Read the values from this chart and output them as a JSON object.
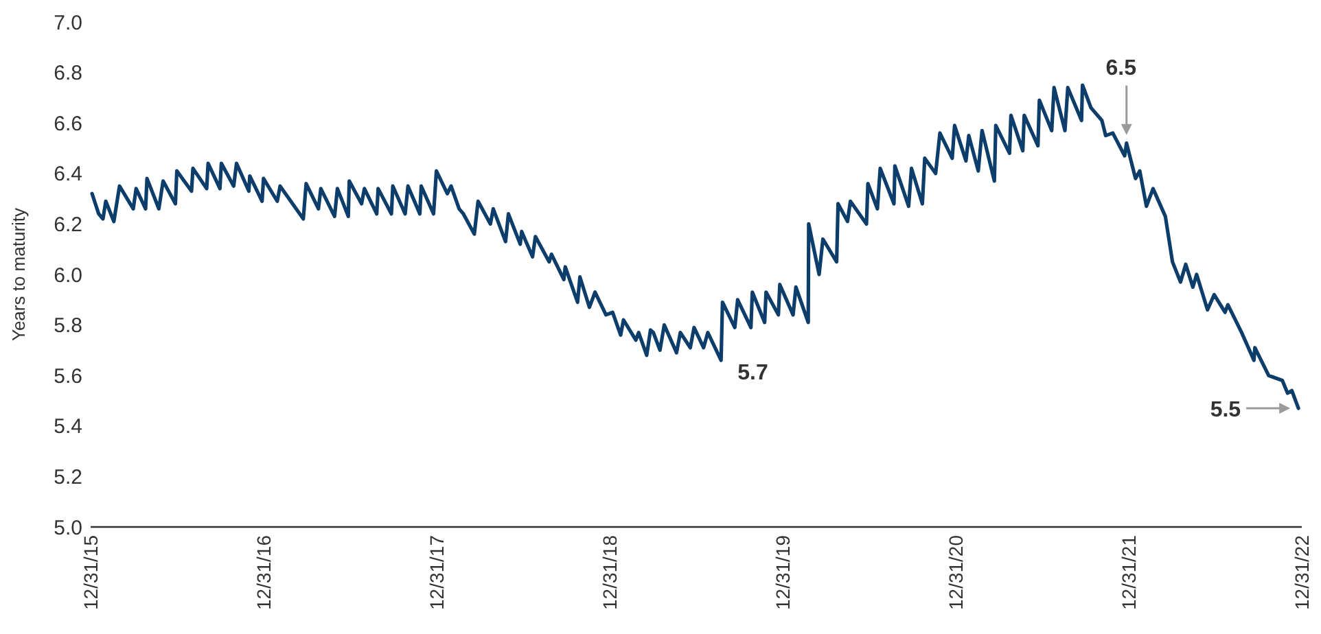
{
  "chart_data": {
    "type": "line",
    "ylabel": "Years to maturity",
    "xlim": [
      "2015-12-31",
      "2022-12-31"
    ],
    "xticks": [
      {
        "value": "2015-12-31",
        "label": "12/31/15"
      },
      {
        "value": "2016-12-31",
        "label": "12/31/16"
      },
      {
        "value": "2017-12-31",
        "label": "12/31/17"
      },
      {
        "value": "2018-12-31",
        "label": "12/31/18"
      },
      {
        "value": "2019-12-31",
        "label": "12/31/19"
      },
      {
        "value": "2020-12-31",
        "label": "12/31/20"
      },
      {
        "value": "2021-12-31",
        "label": "12/31/21"
      },
      {
        "value": "2022-12-31",
        "label": "12/31/22"
      }
    ],
    "ylim": [
      5,
      7
    ],
    "yticks": [
      {
        "value": 5,
        "label": "5.0"
      },
      {
        "value": 5.2,
        "label": "5.2"
      },
      {
        "value": 5.4,
        "label": "5.4"
      },
      {
        "value": 5.6,
        "label": "5.6"
      },
      {
        "value": 5.8,
        "label": "5.8"
      },
      {
        "value": 6,
        "label": "6.0"
      },
      {
        "value": 6.2,
        "label": "6.2"
      },
      {
        "value": 6.4,
        "label": "6.4"
      },
      {
        "value": 6.6,
        "label": "6.6"
      },
      {
        "value": 6.8,
        "label": "6.8"
      },
      {
        "value": 7,
        "label": "7.0"
      }
    ],
    "grid": false,
    "marker": "none",
    "line_style": "solid",
    "x": [
      "2016-01-03",
      "2016-01-17",
      "2016-01-26",
      "2016-02-01",
      "2016-02-18",
      "2016-03-01",
      "2016-03-30",
      "2016-04-05",
      "2016-04-25",
      "2016-04-28",
      "2016-05-23",
      "2016-06-01",
      "2016-06-27",
      "2016-06-30",
      "2016-07-31",
      "2016-08-03",
      "2016-09-01",
      "2016-09-04",
      "2016-09-29",
      "2016-10-02",
      "2016-10-28",
      "2016-11-03",
      "2016-11-29",
      "2016-12-01",
      "2016-12-27",
      "2016-12-30",
      "2017-01-28",
      "2017-02-03",
      "2017-03-24",
      "2017-03-30",
      "2017-04-25",
      "2017-04-30",
      "2017-05-29",
      "2017-06-04",
      "2017-06-27",
      "2017-06-29",
      "2017-07-25",
      "2017-07-31",
      "2017-08-26",
      "2017-08-29",
      "2017-09-26",
      "2017-09-29",
      "2017-10-25",
      "2017-10-31",
      "2017-11-25",
      "2017-11-28",
      "2017-12-24",
      "2017-12-30",
      "2018-01-22",
      "2018-01-30",
      "2018-02-16",
      "2018-02-25",
      "2018-03-20",
      "2018-03-28",
      "2018-04-23",
      "2018-04-29",
      "2018-05-25",
      "2018-05-31",
      "2018-06-25",
      "2018-06-28",
      "2018-07-21",
      "2018-07-27",
      "2018-08-25",
      "2018-08-30",
      "2018-09-25",
      "2018-09-28",
      "2018-10-24",
      "2018-10-29",
      "2018-11-18",
      "2018-11-30",
      "2018-12-23",
      "2019-01-06",
      "2019-01-23",
      "2019-01-29",
      "2019-02-24",
      "2019-03-02",
      "2019-03-19",
      "2019-03-27",
      "2019-04-02",
      "2019-04-16",
      "2019-04-25",
      "2019-05-21",
      "2019-05-29",
      "2019-06-19",
      "2019-06-27",
      "2019-07-17",
      "2019-07-26",
      "2019-08-23",
      "2019-08-26",
      "2019-09-21",
      "2019-09-27",
      "2019-10-25",
      "2019-10-28",
      "2019-11-23",
      "2019-11-26",
      "2019-12-22",
      "2019-12-25",
      "2020-01-22",
      "2020-01-28",
      "2020-02-23",
      "2020-02-24",
      "2020-03-17",
      "2020-03-25",
      "2020-04-23",
      "2020-04-26",
      "2020-05-16",
      "2020-05-22",
      "2020-06-25",
      "2020-06-28",
      "2020-07-18",
      "2020-07-24",
      "2020-08-22",
      "2020-08-24",
      "2020-09-22",
      "2020-09-28",
      "2020-10-21",
      "2020-10-26",
      "2020-11-18",
      "2020-11-27",
      "2020-12-23",
      "2020-12-28",
      "2021-01-21",
      "2021-01-27",
      "2021-02-16",
      "2021-02-24",
      "2021-03-22",
      "2021-03-25",
      "2021-04-23",
      "2021-04-26",
      "2021-05-21",
      "2021-05-24",
      "2021-06-22",
      "2021-06-25",
      "2021-07-21",
      "2021-07-26",
      "2021-08-18",
      "2021-08-24",
      "2021-09-22",
      "2021-09-24",
      "2021-10-12",
      "2021-11-04",
      "2021-11-12",
      "2021-11-27",
      "2021-12-22",
      "2021-12-26",
      "2022-01-14",
      "2022-01-23",
      "2022-02-06",
      "2022-02-20",
      "2022-03-18",
      "2022-04-02",
      "2022-04-19",
      "2022-04-30",
      "2022-05-15",
      "2022-05-23",
      "2022-06-15",
      "2022-06-29",
      "2022-07-22",
      "2022-07-28",
      "2022-08-26",
      "2022-09-21",
      "2022-09-23",
      "2022-10-22",
      "2022-11-20",
      "2022-12-01",
      "2022-12-10",
      "2022-12-24"
    ],
    "series": [
      {
        "color": "#0d3d6b",
        "values": [
          6.32,
          6.24,
          6.22,
          6.29,
          6.21,
          6.35,
          6.26,
          6.34,
          6.26,
          6.38,
          6.26,
          6.37,
          6.28,
          6.41,
          6.33,
          6.42,
          6.34,
          6.44,
          6.34,
          6.44,
          6.35,
          6.44,
          6.33,
          6.39,
          6.29,
          6.38,
          6.29,
          6.35,
          6.22,
          6.36,
          6.26,
          6.34,
          6.23,
          6.34,
          6.23,
          6.37,
          6.28,
          6.34,
          6.24,
          6.34,
          6.24,
          6.35,
          6.24,
          6.35,
          6.24,
          6.35,
          6.24,
          6.41,
          6.32,
          6.35,
          6.26,
          6.24,
          6.16,
          6.29,
          6.2,
          6.26,
          6.13,
          6.24,
          6.12,
          6.17,
          6.07,
          6.15,
          6.05,
          6.08,
          5.98,
          6.03,
          5.89,
          5.99,
          5.87,
          5.93,
          5.84,
          5.85,
          5.76,
          5.82,
          5.74,
          5.77,
          5.68,
          5.78,
          5.77,
          5.7,
          5.8,
          5.69,
          5.77,
          5.71,
          5.79,
          5.71,
          5.77,
          5.66,
          5.89,
          5.79,
          5.9,
          5.79,
          5.93,
          5.81,
          5.93,
          5.84,
          5.96,
          5.84,
          5.95,
          5.81,
          6.2,
          6.0,
          6.14,
          6.05,
          6.28,
          6.21,
          6.29,
          6.2,
          6.36,
          6.26,
          6.42,
          6.28,
          6.43,
          6.27,
          6.42,
          6.28,
          6.46,
          6.4,
          6.56,
          6.46,
          6.59,
          6.45,
          6.55,
          6.41,
          6.57,
          6.37,
          6.59,
          6.48,
          6.63,
          6.49,
          6.63,
          6.51,
          6.69,
          6.57,
          6.74,
          6.57,
          6.74,
          6.61,
          6.75,
          6.66,
          6.61,
          6.55,
          6.56,
          6.47,
          6.52,
          6.38,
          6.41,
          6.27,
          6.34,
          6.23,
          6.05,
          5.97,
          6.04,
          5.95,
          6.0,
          5.86,
          5.92,
          5.85,
          5.88,
          5.77,
          5.66,
          5.71,
          5.6,
          5.58,
          5.53,
          5.54,
          5.47
        ]
      }
    ],
    "annotations": [
      {
        "text": "5.7",
        "x": "2019-08-23",
        "y": 5.66
      },
      {
        "text": "6.5",
        "x": "2021-12-26",
        "y": 6.52
      },
      {
        "text": "5.5",
        "x": "2022-12-24",
        "y": 5.47
      }
    ]
  }
}
